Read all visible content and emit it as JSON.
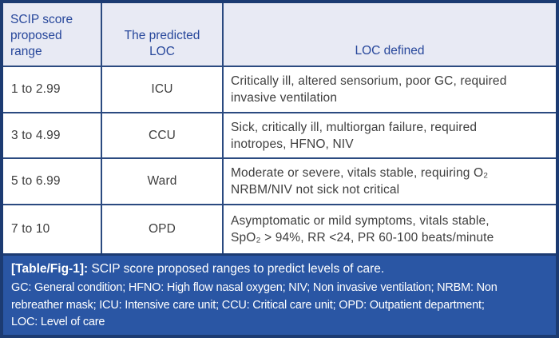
{
  "table": {
    "headers": {
      "range": "SCIP score\nproposed\nrange",
      "loc": "The predicted\nLOC",
      "defined": "LOC defined"
    },
    "rows": [
      {
        "range": "1 to 2.99",
        "loc": "ICU",
        "definition": "Critically ill, altered sensorium, poor GC, required\ninvasive ventilation"
      },
      {
        "range": "3 to 4.99",
        "loc": "CCU",
        "definition": "Sick, critically ill, multiorgan failure, required\ninotropes, HFNO, NIV"
      },
      {
        "range": "5 to 6.99",
        "loc": "Ward",
        "definition": "Moderate or severe, vitals stable, requiring O₂\nNRBM/NIV not sick not critical"
      },
      {
        "range": "7 to 10",
        "loc": "OPD",
        "definition": "Asymptomatic or mild symptoms, vitals stable,\nSpO₂ > 94%, RR <24, PR 60-100 beats/minute"
      }
    ]
  },
  "caption": {
    "label": "[Table/Fig-1]:",
    "text": "SCIP score proposed ranges to predict levels of care.",
    "abbreviations": "GC: General condition; HFNO: High flow nasal oxygen; NIV; Non invasive ventilation; NRBM: Non\nrebreather mask; ICU: Intensive care unit; CCU: Critical care unit; OPD: Outpatient department;\nLOC: Level of care"
  },
  "colors": {
    "outer_border": "#1c3b72",
    "grid_line": "#2b4a80",
    "header_background": "#e8eaf4",
    "header_text": "#27479b",
    "body_text": "#3e3e3e",
    "caption_background": "#2a56a4",
    "caption_text": "#ffffff"
  }
}
